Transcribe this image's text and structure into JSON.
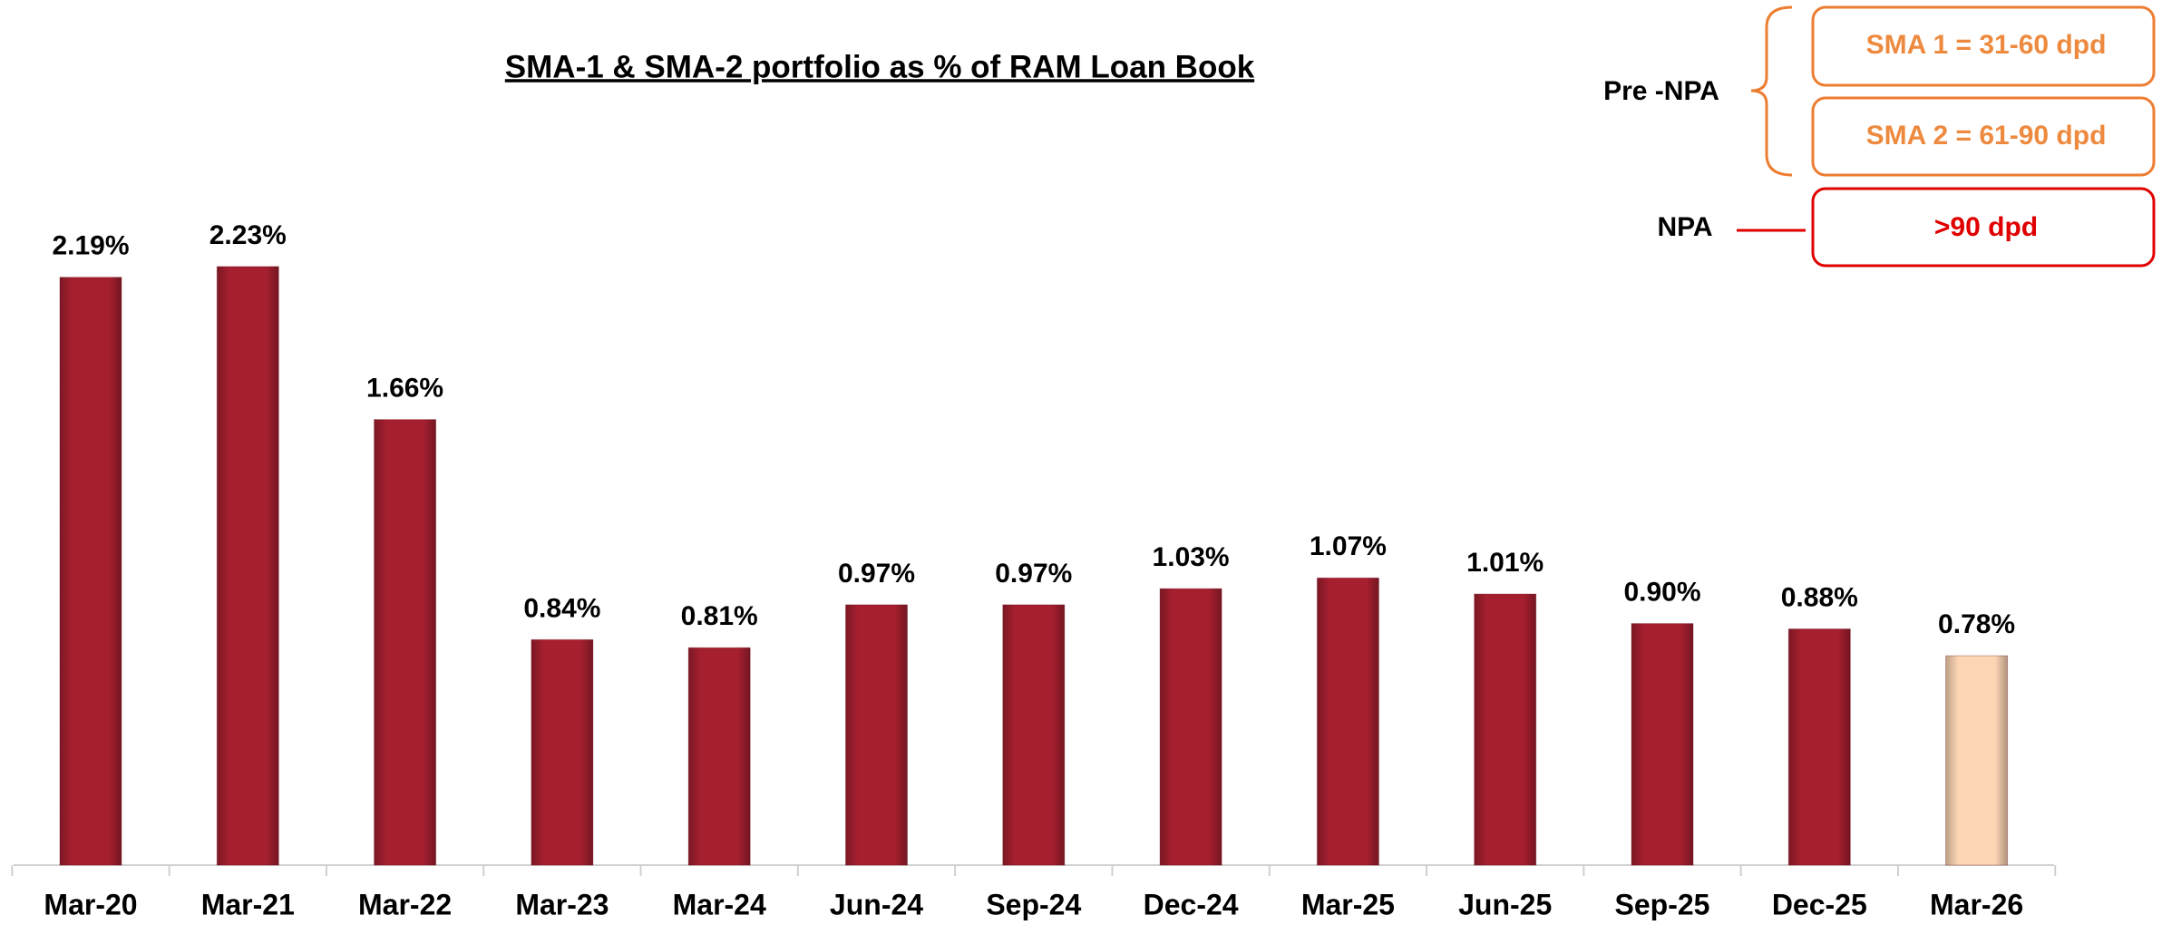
{
  "chart_data": {
    "type": "bar",
    "title": "SMA-1 & SMA-2 portfolio as % of RAM Loan Book",
    "categories": [
      "Mar-20",
      "Mar-21",
      "Mar-22",
      "Mar-23",
      "Mar-24",
      "Jun-24",
      "Sep-24",
      "Dec-24",
      "Mar-25",
      "Jun-25",
      "Sep-25",
      "Dec-25",
      "Mar-26"
    ],
    "values": [
      2.19,
      2.23,
      1.66,
      0.84,
      0.81,
      0.97,
      0.97,
      1.03,
      1.07,
      1.01,
      0.9,
      0.88,
      0.78
    ],
    "value_labels": [
      "2.19%",
      "2.23%",
      "1.66%",
      "0.84%",
      "0.81%",
      "0.97%",
      "0.97%",
      "1.03%",
      "1.07%",
      "1.01%",
      "0.90%",
      "0.88%",
      "0.78%"
    ],
    "colors": [
      "#a51f2f",
      "#a51f2f",
      "#a51f2f",
      "#a51f2f",
      "#a51f2f",
      "#a51f2f",
      "#a51f2f",
      "#a51f2f",
      "#a51f2f",
      "#a51f2f",
      "#a51f2f",
      "#a51f2f",
      "#fcd5b4"
    ],
    "legend": {
      "pre_npa_label": "Pre -NPA",
      "sma1": "SMA 1 = 31-60 dpd",
      "sma2": "SMA 2 = 61-90 dpd",
      "npa_label": "NPA",
      "npa": ">90 dpd"
    }
  }
}
